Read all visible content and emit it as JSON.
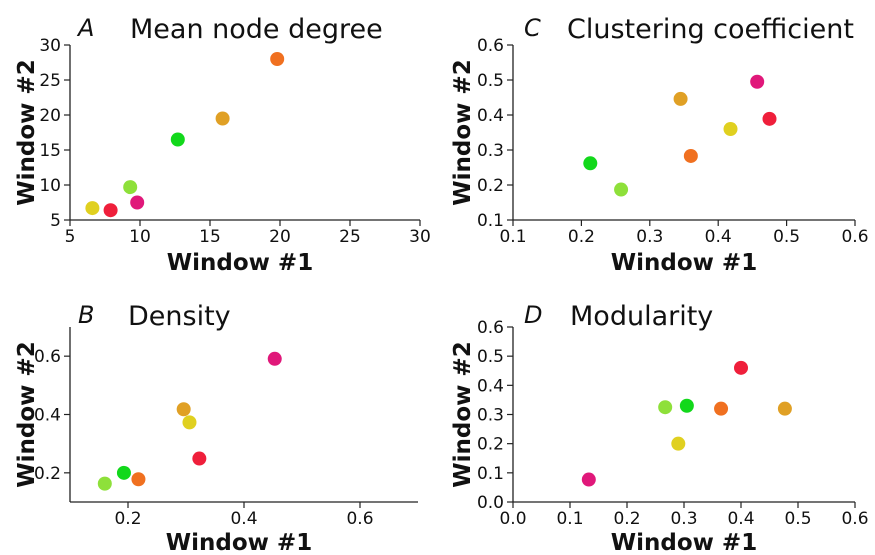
{
  "chart_data": [
    {
      "type": "scatter",
      "letter": "A",
      "title": "Mean node degree",
      "xlabel": "Window #1",
      "ylabel": "Window #2",
      "xlim": [
        5,
        30
      ],
      "ylim": [
        5,
        30
      ],
      "xticks": [
        5,
        10,
        15,
        20,
        25,
        30
      ],
      "yticks": [
        5,
        10,
        15,
        20,
        25,
        30
      ],
      "xtick_labels": [
        "5",
        "10",
        "15",
        "20",
        "25",
        "30"
      ],
      "ytick_labels": [
        "5",
        "10",
        "15",
        "20",
        "25",
        "30"
      ],
      "grid": false,
      "points": [
        {
          "x": 6.6,
          "y": 6.7,
          "color": "#e0d020"
        },
        {
          "x": 7.9,
          "y": 6.4,
          "color": "#ef1f3b"
        },
        {
          "x": 9.3,
          "y": 9.7,
          "color": "#8ee03a"
        },
        {
          "x": 9.8,
          "y": 7.5,
          "color": "#e0187a"
        },
        {
          "x": 12.7,
          "y": 16.5,
          "color": "#12d81b"
        },
        {
          "x": 15.9,
          "y": 19.5,
          "color": "#e0a025"
        },
        {
          "x": 19.8,
          "y": 28.0,
          "color": "#f07020"
        }
      ]
    },
    {
      "type": "scatter",
      "letter": "C",
      "title": "Clustering coefficient",
      "xlabel": "Window #1",
      "ylabel": "Window #2",
      "xlim": [
        0.1,
        0.6
      ],
      "ylim": [
        0.1,
        0.6
      ],
      "xticks": [
        0.1,
        0.2,
        0.3,
        0.4,
        0.5,
        0.6
      ],
      "yticks": [
        0.1,
        0.2,
        0.3,
        0.4,
        0.5,
        0.6
      ],
      "xtick_labels": [
        "0.1",
        "0.2",
        "0.3",
        "0.4",
        "0.5",
        "0.6"
      ],
      "ytick_labels": [
        "0.1",
        "0.2",
        "0.3",
        "0.4",
        "0.5",
        "0.6"
      ],
      "grid": false,
      "points": [
        {
          "x": 0.213,
          "y": 0.262,
          "color": "#12d81b"
        },
        {
          "x": 0.258,
          "y": 0.187,
          "color": "#8ee03a"
        },
        {
          "x": 0.345,
          "y": 0.446,
          "color": "#e0a025"
        },
        {
          "x": 0.36,
          "y": 0.283,
          "color": "#f07020"
        },
        {
          "x": 0.418,
          "y": 0.36,
          "color": "#e0d020"
        },
        {
          "x": 0.457,
          "y": 0.495,
          "color": "#e0187a"
        },
        {
          "x": 0.475,
          "y": 0.389,
          "color": "#ef1f3b"
        }
      ]
    },
    {
      "type": "scatter",
      "letter": "B",
      "title": "Density",
      "xlabel": "Window #1",
      "ylabel": "Window #2",
      "xlim": [
        0.1,
        0.7
      ],
      "ylim": [
        0.1,
        0.7
      ],
      "xticks": [
        0.2,
        0.4,
        0.6
      ],
      "yticks": [
        0.2,
        0.4,
        0.6
      ],
      "xtick_labels": [
        "0.2",
        "0.4",
        "0.6"
      ],
      "ytick_labels": [
        "0.2",
        "0.4",
        "0.6"
      ],
      "grid": false,
      "points": [
        {
          "x": 0.16,
          "y": 0.163,
          "color": "#8ee03a"
        },
        {
          "x": 0.193,
          "y": 0.2,
          "color": "#12d81b"
        },
        {
          "x": 0.218,
          "y": 0.178,
          "color": "#f07020"
        },
        {
          "x": 0.296,
          "y": 0.418,
          "color": "#e0a025"
        },
        {
          "x": 0.306,
          "y": 0.373,
          "color": "#e0d020"
        },
        {
          "x": 0.323,
          "y": 0.249,
          "color": "#ef1f3b"
        },
        {
          "x": 0.453,
          "y": 0.591,
          "color": "#e0187a"
        }
      ]
    },
    {
      "type": "scatter",
      "letter": "D",
      "title": "Modularity",
      "xlabel": "Window #1",
      "ylabel": "Window #2",
      "xlim": [
        0.0,
        0.6
      ],
      "ylim": [
        0.0,
        0.6
      ],
      "xticks": [
        0.0,
        0.1,
        0.2,
        0.3,
        0.4,
        0.5,
        0.6
      ],
      "yticks": [
        0.0,
        0.1,
        0.2,
        0.3,
        0.4,
        0.5,
        0.6
      ],
      "xtick_labels": [
        "0.0",
        "0.1",
        "0.2",
        "0.3",
        "0.4",
        "0.5",
        "0.6"
      ],
      "ytick_labels": [
        "0.0",
        "0.1",
        "0.2",
        "0.3",
        "0.4",
        "0.5",
        "0.6"
      ],
      "grid": false,
      "points": [
        {
          "x": 0.133,
          "y": 0.077,
          "color": "#e0187a"
        },
        {
          "x": 0.267,
          "y": 0.325,
          "color": "#8ee03a"
        },
        {
          "x": 0.29,
          "y": 0.2,
          "color": "#e0d020"
        },
        {
          "x": 0.305,
          "y": 0.33,
          "color": "#12d81b"
        },
        {
          "x": 0.365,
          "y": 0.32,
          "color": "#f07020"
        },
        {
          "x": 0.4,
          "y": 0.46,
          "color": "#ef1f3b"
        },
        {
          "x": 0.477,
          "y": 0.32,
          "color": "#e0a025"
        }
      ]
    }
  ]
}
